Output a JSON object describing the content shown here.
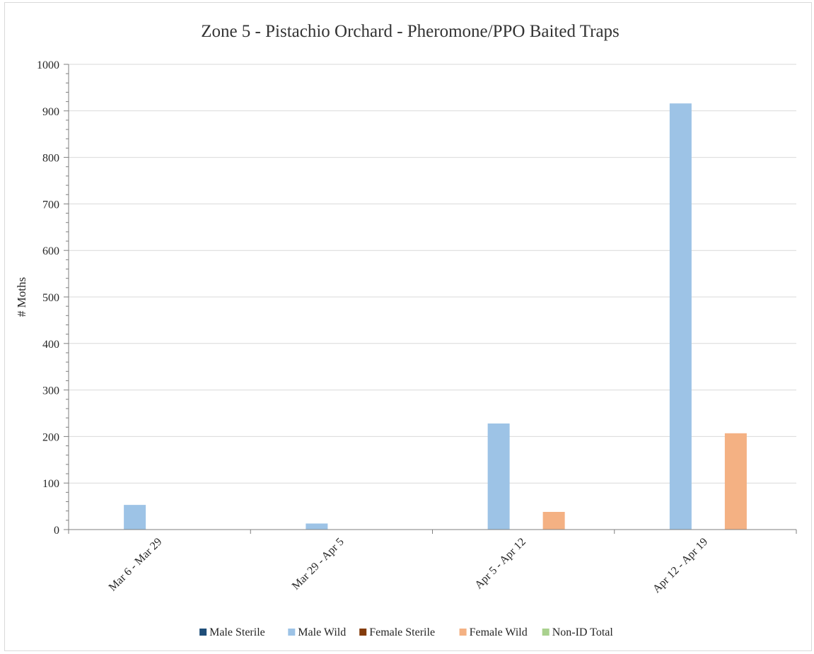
{
  "chart_data": {
    "type": "bar",
    "title": "Zone 5 - Pistachio Orchard - Pheromone/PPO Baited Traps",
    "xlabel": "",
    "ylabel": "# Moths",
    "ylim": [
      0,
      1000
    ],
    "yticks": [
      0,
      100,
      200,
      300,
      400,
      500,
      600,
      700,
      800,
      900,
      1000
    ],
    "grid": true,
    "legend_position": "bottom",
    "categories": [
      "Mar 6 - Mar 29",
      "Mar 29 - Apr 5",
      "Apr 5 - Apr 12",
      "Apr 12 - Apr 19"
    ],
    "series": [
      {
        "name": "Male Sterile",
        "color": "#1f4e79",
        "values": [
          0,
          0,
          0,
          0
        ]
      },
      {
        "name": "Male Wild",
        "color": "#9dc3e6",
        "values": [
          53,
          13,
          228,
          916
        ]
      },
      {
        "name": "Female Sterile",
        "color": "#843c0c",
        "values": [
          0,
          0,
          0,
          0
        ]
      },
      {
        "name": "Female Wild",
        "color": "#f4b183",
        "values": [
          0,
          0,
          38,
          207
        ]
      },
      {
        "name": "Non-ID Total",
        "color": "#a9d18e",
        "values": [
          0,
          0,
          0,
          0
        ]
      }
    ]
  }
}
